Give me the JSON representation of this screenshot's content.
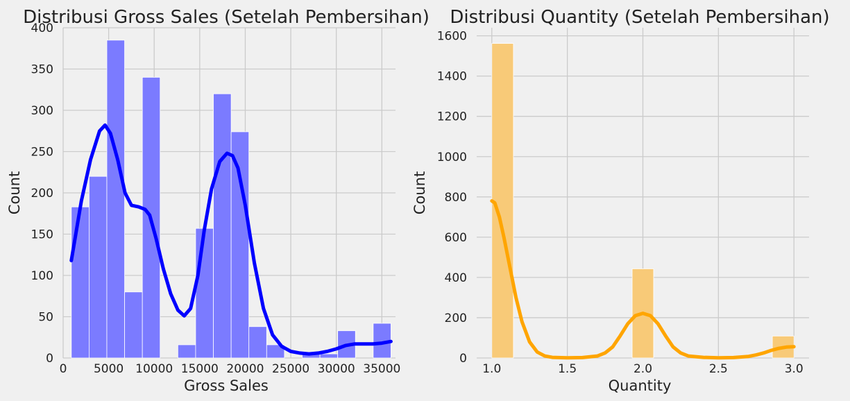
{
  "chart_data": [
    {
      "type": "bar",
      "title": "Distribusi Gross Sales (Setelah Pembersihan)",
      "xlabel": "Gross Sales",
      "ylabel": "Count",
      "xlim": [
        0,
        36500
      ],
      "ylim": [
        0,
        400
      ],
      "xticks": [
        0,
        5000,
        10000,
        15000,
        20000,
        25000,
        30000,
        35000
      ],
      "yticks": [
        0,
        50,
        100,
        150,
        200,
        250,
        300,
        350,
        400
      ],
      "grid": true,
      "bar_color": "#7b7bff",
      "kde_color": "#0000ff",
      "bins": [
        {
          "x0": 900,
          "x1": 2850,
          "count": 183
        },
        {
          "x0": 2850,
          "x1": 4800,
          "count": 220
        },
        {
          "x0": 4800,
          "x1": 6750,
          "count": 385
        },
        {
          "x0": 6750,
          "x1": 8700,
          "count": 80
        },
        {
          "x0": 8700,
          "x1": 10650,
          "count": 340
        },
        {
          "x0": 10650,
          "x1": 12600,
          "count": 0
        },
        {
          "x0": 12600,
          "x1": 14550,
          "count": 16
        },
        {
          "x0": 14550,
          "x1": 16500,
          "count": 157
        },
        {
          "x0": 16500,
          "x1": 18450,
          "count": 320
        },
        {
          "x0": 18450,
          "x1": 20400,
          "count": 274
        },
        {
          "x0": 20400,
          "x1": 22350,
          "count": 38
        },
        {
          "x0": 22350,
          "x1": 24300,
          "count": 16
        },
        {
          "x0": 24300,
          "x1": 26250,
          "count": 0
        },
        {
          "x0": 26250,
          "x1": 28200,
          "count": 5
        },
        {
          "x0": 28200,
          "x1": 30150,
          "count": 5
        },
        {
          "x0": 30150,
          "x1": 32100,
          "count": 33
        },
        {
          "x0": 32100,
          "x1": 34050,
          "count": 0
        },
        {
          "x0": 34050,
          "x1": 36000,
          "count": 42
        }
      ],
      "kde": {
        "x": [
          900,
          2000,
          3000,
          4000,
          4600,
          5200,
          6000,
          6800,
          7500,
          8300,
          9000,
          9500,
          10200,
          11000,
          11800,
          12600,
          13300,
          14000,
          14800,
          15500,
          16300,
          17200,
          18000,
          18600,
          19200,
          20000,
          21000,
          22000,
          23000,
          24000,
          25000,
          26000,
          27000,
          28000,
          29000,
          30000,
          31000,
          32000,
          33000,
          34000,
          35000,
          36000
        ],
        "y": [
          118,
          190,
          240,
          275,
          282,
          272,
          240,
          200,
          185,
          183,
          180,
          173,
          145,
          108,
          78,
          58,
          51,
          60,
          100,
          155,
          205,
          238,
          248,
          245,
          230,
          185,
          115,
          60,
          28,
          14,
          8,
          6,
          5,
          6,
          8,
          11,
          15,
          17,
          17,
          17,
          18,
          20
        ]
      }
    },
    {
      "type": "bar",
      "title": "Distribusi Quantity (Setelah Pembersihan)",
      "xlabel": "Quantity",
      "ylabel": "Count",
      "xlim": [
        0.9,
        3.1
      ],
      "ylim": [
        0,
        1640
      ],
      "xticks": [
        1.0,
        1.5,
        2.0,
        2.5,
        3.0
      ],
      "yticks": [
        0,
        200,
        400,
        600,
        800,
        1000,
        1200,
        1400,
        1600
      ],
      "grid": true,
      "bar_color": "#f8ca78",
      "kde_color": "#ffa500",
      "bins": [
        {
          "x0": 1.0,
          "x1": 1.143,
          "count": 1562
        },
        {
          "x0": 1.929,
          "x1": 2.071,
          "count": 443
        },
        {
          "x0": 2.857,
          "x1": 3.0,
          "count": 109
        }
      ],
      "kde": {
        "x": [
          1.0,
          1.02,
          1.05,
          1.08,
          1.12,
          1.16,
          1.2,
          1.25,
          1.3,
          1.35,
          1.4,
          1.5,
          1.6,
          1.7,
          1.75,
          1.8,
          1.85,
          1.9,
          1.95,
          2.0,
          2.05,
          2.1,
          2.15,
          2.2,
          2.25,
          2.3,
          2.4,
          2.5,
          2.6,
          2.7,
          2.75,
          2.8,
          2.85,
          2.9,
          2.95,
          3.0
        ],
        "y": [
          780,
          770,
          700,
          600,
          450,
          300,
          180,
          80,
          30,
          10,
          3,
          1,
          2,
          10,
          25,
          55,
          110,
          170,
          210,
          222,
          210,
          170,
          110,
          55,
          25,
          10,
          3,
          1,
          2,
          8,
          15,
          25,
          38,
          48,
          54,
          56
        ]
      }
    }
  ]
}
